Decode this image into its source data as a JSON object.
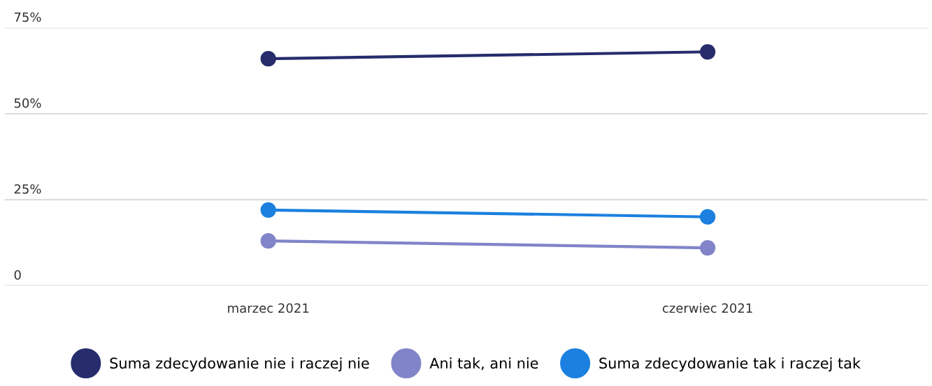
{
  "chart_data": {
    "type": "line",
    "categories": [
      "marzec 2021",
      "czerwiec 2021"
    ],
    "series": [
      {
        "name": "Suma zdecydowanie nie i raczej nie",
        "color": "#262c6c",
        "values": [
          66,
          68
        ]
      },
      {
        "name": "Ani tak, ani nie",
        "color": "#8184c8",
        "values": [
          13,
          11
        ]
      },
      {
        "name": "Suma zdecydowanie tak i raczej tak",
        "color": "#1b80df",
        "values": [
          22,
          20
        ]
      }
    ],
    "ylim": [
      0,
      75
    ],
    "yticks": [
      0,
      {
        "value": 25,
        "label": "25%"
      },
      {
        "value": 50,
        "label": "50%"
      },
      {
        "value": 75,
        "label": "75%"
      }
    ],
    "grid": "y",
    "legend": "bottom",
    "marker": "circle",
    "line_style": "solid"
  }
}
